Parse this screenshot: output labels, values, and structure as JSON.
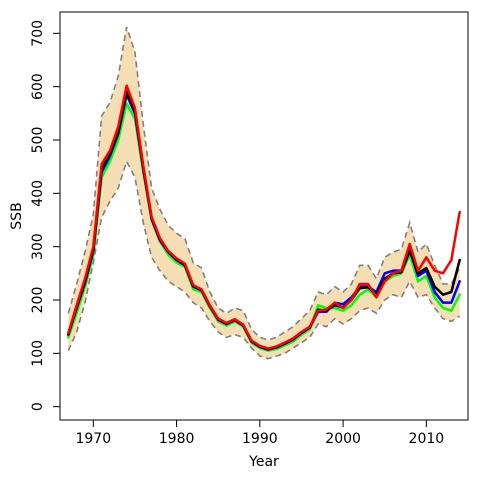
{
  "chart_data": {
    "type": "line",
    "xlabel": "Year",
    "ylabel": "SSB",
    "xlim": [
      1966,
      2015
    ],
    "ylim": [
      -25,
      740
    ],
    "xticks": [
      1970,
      1980,
      1990,
      2000,
      2010
    ],
    "yticks": [
      0,
      100,
      200,
      300,
      400,
      500,
      600,
      700
    ],
    "grid": false,
    "legend": "none",
    "band": {
      "fill": "#f5deb3",
      "edge_color": "#808080",
      "x": [
        1967,
        1968,
        1969,
        1970,
        1971,
        1972,
        1973,
        1974,
        1975,
        1976,
        1977,
        1978,
        1979,
        1980,
        1981,
        1982,
        1983,
        1984,
        1985,
        1986,
        1987,
        1988,
        1989,
        1990,
        1991,
        1992,
        1993,
        1994,
        1995,
        1996,
        1997,
        1998,
        1999,
        2000,
        2001,
        2002,
        2003,
        2004,
        2005,
        2006,
        2007,
        2008,
        2009,
        2010,
        2011,
        2012,
        2013,
        2014
      ],
      "upper": [
        175,
        230,
        290,
        360,
        545,
        570,
        620,
        712,
        665,
        530,
        410,
        370,
        340,
        325,
        315,
        270,
        260,
        215,
        185,
        175,
        185,
        180,
        145,
        130,
        125,
        130,
        140,
        150,
        165,
        180,
        215,
        210,
        225,
        215,
        230,
        265,
        265,
        240,
        280,
        290,
        295,
        345,
        290,
        305,
        265,
        230,
        230,
        260
      ],
      "lower": [
        105,
        140,
        195,
        270,
        355,
        385,
        410,
        460,
        430,
        345,
        280,
        255,
        235,
        225,
        215,
        195,
        185,
        160,
        140,
        130,
        135,
        130,
        110,
        95,
        90,
        95,
        100,
        110,
        120,
        130,
        155,
        150,
        165,
        155,
        165,
        180,
        185,
        175,
        200,
        210,
        205,
        235,
        205,
        210,
        185,
        165,
        160,
        170
      ]
    },
    "series": [
      {
        "color": "#00ff00",
        "x": [
          1967,
          1968,
          1969,
          1970,
          1971,
          1972,
          1973,
          1974,
          1975,
          1976,
          1977,
          1978,
          1979,
          1980,
          1981,
          1982,
          1983,
          1984,
          1985,
          1986,
          1987,
          1988,
          1989,
          1990,
          1991,
          1992,
          1993,
          1994,
          1995,
          1996,
          1997,
          1998,
          1999,
          2000,
          2001,
          2002,
          2003,
          2004,
          2005,
          2006,
          2007,
          2008,
          2009,
          2010,
          2011,
          2012,
          2013,
          2014
        ],
        "values": [
          130,
          175,
          225,
          285,
          430,
          460,
          500,
          568,
          540,
          440,
          350,
          310,
          285,
          270,
          262,
          220,
          215,
          185,
          160,
          152,
          160,
          150,
          120,
          110,
          105,
          108,
          115,
          122,
          135,
          145,
          190,
          185,
          185,
          180,
          190,
          210,
          220,
          205,
          235,
          245,
          250,
          285,
          235,
          245,
          205,
          185,
          180,
          210
        ]
      },
      {
        "color": "#0000ff",
        "x": [
          1967,
          1968,
          1969,
          1970,
          1971,
          1972,
          1973,
          1974,
          1975,
          1976,
          1977,
          1978,
          1979,
          1980,
          1981,
          1982,
          1983,
          1984,
          1985,
          1986,
          1987,
          1988,
          1989,
          1990,
          1991,
          1992,
          1993,
          1994,
          1995,
          1996,
          1997,
          1998,
          1999,
          2000,
          2001,
          2002,
          2003,
          2004,
          2005,
          2006,
          2007,
          2008,
          2009,
          2010,
          2011,
          2012,
          2013,
          2014
        ],
        "values": [
          135,
          185,
          232,
          292,
          440,
          470,
          512,
          585,
          550,
          445,
          352,
          312,
          290,
          275,
          265,
          225,
          218,
          188,
          163,
          155,
          162,
          152,
          122,
          112,
          107,
          111,
          118,
          126,
          138,
          148,
          178,
          178,
          195,
          192,
          205,
          225,
          225,
          215,
          250,
          255,
          255,
          295,
          245,
          255,
          215,
          195,
          195,
          235
        ]
      },
      {
        "color": "#000000",
        "x": [
          1967,
          1968,
          1969,
          1970,
          1971,
          1972,
          1973,
          1974,
          1975,
          1976,
          1977,
          1978,
          1979,
          1980,
          1981,
          1982,
          1983,
          1984,
          1985,
          1986,
          1987,
          1988,
          1989,
          1990,
          1991,
          1992,
          1993,
          1994,
          1995,
          1996,
          1997,
          1998,
          1999,
          2000,
          2001,
          2002,
          2003,
          2004,
          2005,
          2006,
          2007,
          2008,
          2009,
          2010,
          2011,
          2012,
          2013,
          2014
        ],
        "values": [
          136,
          186,
          234,
          294,
          445,
          475,
          515,
          590,
          555,
          448,
          354,
          314,
          291,
          276,
          266,
          226,
          219,
          189,
          164,
          156,
          163,
          153,
          123,
          113,
          108,
          112,
          119,
          127,
          139,
          149,
          182,
          180,
          190,
          186,
          200,
          222,
          224,
          210,
          240,
          250,
          252,
          292,
          250,
          260,
          225,
          210,
          215,
          275
        ]
      },
      {
        "color": "#ff0000",
        "x": [
          1967,
          1968,
          1969,
          1970,
          1971,
          1972,
          1973,
          1974,
          1975,
          1976,
          1977,
          1978,
          1979,
          1980,
          1981,
          1982,
          1983,
          1984,
          1985,
          1986,
          1987,
          1988,
          1989,
          1990,
          1991,
          1992,
          1993,
          1994,
          1995,
          1996,
          1997,
          1998,
          1999,
          2000,
          2001,
          2002,
          2003,
          2004,
          2005,
          2006,
          2007,
          2008,
          2009,
          2010,
          2011,
          2012,
          2013,
          2014
        ],
        "values": [
          138,
          190,
          240,
          300,
          455,
          480,
          525,
          602,
          560,
          452,
          356,
          316,
          292,
          278,
          268,
          228,
          220,
          190,
          165,
          157,
          164,
          154,
          124,
          114,
          109,
          113,
          120,
          128,
          140,
          150,
          180,
          182,
          195,
          185,
          200,
          230,
          230,
          205,
          235,
          250,
          255,
          305,
          255,
          280,
          255,
          250,
          275,
          365
        ]
      }
    ]
  }
}
